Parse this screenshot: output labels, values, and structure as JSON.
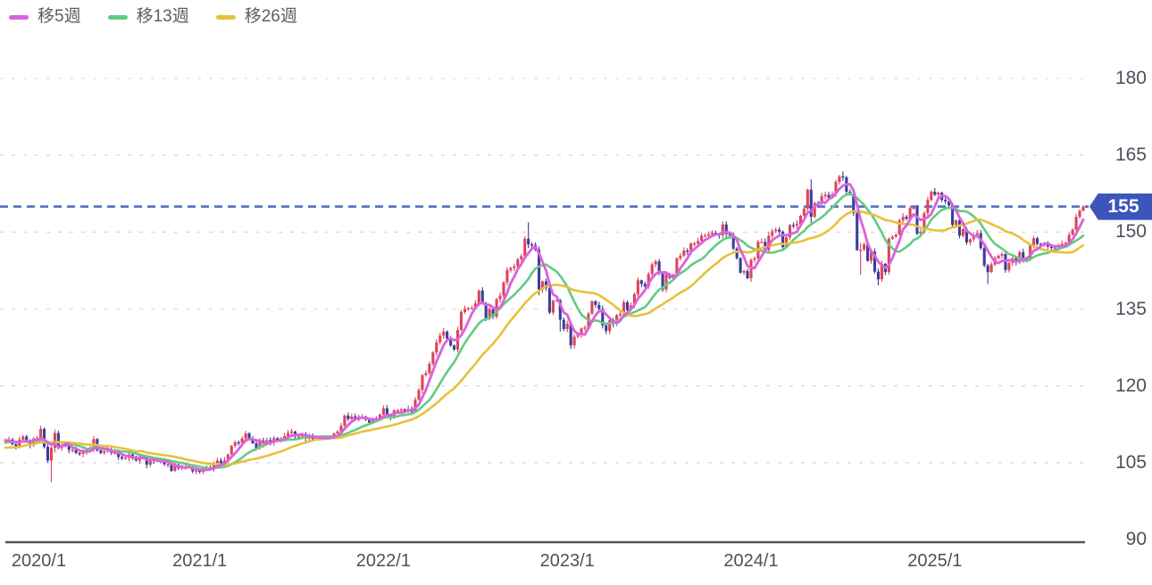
{
  "legend": {
    "items": [
      {
        "id": "ma5",
        "label": "移5週",
        "color": "#db63dc"
      },
      {
        "id": "ma13",
        "label": "移13週",
        "color": "#63cb80"
      },
      {
        "id": "ma26",
        "label": "移26週",
        "color": "#e7c13b"
      }
    ]
  },
  "y_axis": {
    "values": [
      180,
      165,
      150,
      135,
      120,
      105,
      90
    ]
  },
  "x_axis": {
    "tick_labels": [
      "2020/1",
      "2021/1",
      "2022/1",
      "2023/1",
      "2024/1",
      "2025/1"
    ],
    "tick_week_indices": [
      3,
      55,
      107,
      159,
      211,
      263
    ]
  },
  "price_marker": {
    "value": "155",
    "badge_color": "#3d54bb",
    "line_color": "#5a73c8"
  },
  "chart_data": {
    "type": "candlestick",
    "timeframe": "weekly",
    "title": "",
    "ylim": [
      90,
      180
    ],
    "y_gridline_step": 15,
    "grid": "horizontal-dashed",
    "legend_position": "top-left",
    "up_color": "#de4558",
    "down_color": "#3a3d9b",
    "grid_color": "#dadadc",
    "axis_line_color": "#53565c",
    "price_line": 155,
    "pre_window_closes": [
      107.2,
      107.9,
      107.7,
      108.1,
      106.6,
      106.3,
      105.3,
      106.2,
      105.4,
      106.1,
      107.1,
      107.5,
      107.9,
      108.1,
      107.5,
      108.7,
      108.6,
      109.0,
      108.2,
      108.7,
      109.2,
      108.9,
      109.5,
      109.7,
      108.6,
      109.4
    ],
    "segments": [
      {
        "period": "2019-12",
        "closes": [
          109.4,
          109.5,
          108.6
        ]
      },
      {
        "period": "2020",
        "closes": [
          108.1,
          109.5,
          110.1,
          109.3,
          108.4,
          109.7,
          109.8,
          111.6,
          108.1,
          105.4,
          107.9,
          110.8,
          107.9,
          108.5,
          108.4,
          107.5,
          107.5,
          106.9,
          106.7,
          107.1,
          107.6,
          107.8,
          109.6,
          107.4,
          106.9,
          107.2,
          107.5,
          106.9,
          107.0,
          106.1,
          105.8,
          105.9,
          106.6,
          105.8,
          105.4,
          106.2,
          106.1,
          104.6,
          105.6,
          105.3,
          105.6,
          105.4,
          104.7,
          104.7,
          103.4,
          104.6,
          103.9,
          104.1,
          104.2,
          104.0,
          103.3,
          103.5
        ]
      },
      {
        "period": "2021",
        "closes": [
          103.2,
          104.0,
          103.9,
          103.8,
          104.7,
          105.4,
          104.9,
          105.4,
          106.6,
          108.3,
          109.0,
          108.9,
          109.7,
          110.7,
          109.7,
          108.8,
          107.9,
          109.3,
          108.6,
          109.4,
          108.9,
          109.8,
          109.5,
          109.7,
          110.2,
          110.8,
          111.1,
          110.1,
          110.1,
          110.6,
          109.7,
          110.3,
          109.6,
          109.8,
          109.8,
          109.7,
          109.9,
          110.0,
          110.7,
          111.1,
          112.2,
          114.2,
          113.5,
          114.0,
          113.4,
          113.9,
          114.0,
          113.4,
          112.8,
          113.4,
          113.7,
          114.4
        ]
      },
      {
        "period": "2022",
        "closes": [
          115.6,
          114.2,
          113.7,
          115.2,
          115.2,
          115.4,
          115.0,
          115.5,
          114.8,
          117.3,
          119.2,
          122.1,
          122.5,
          124.3,
          126.5,
          128.5,
          129.8,
          130.6,
          129.2,
          127.9,
          127.1,
          130.9,
          134.4,
          135.0,
          135.2,
          135.2,
          136.1,
          138.6,
          136.1,
          133.2,
          135.0,
          133.5,
          136.9,
          137.6,
          140.2,
          142.6,
          143.0,
          143.3,
          144.7,
          145.3,
          148.7,
          147.6,
          147.5,
          146.6,
          138.8,
          140.4,
          139.1,
          134.3,
          136.6,
          136.7,
          132.9,
          131.1
        ]
      },
      {
        "period": "2023",
        "closes": [
          132.1,
          127.9,
          129.6,
          129.9,
          131.2,
          131.4,
          134.1,
          136.5,
          135.8,
          135.0,
          131.8,
          130.7,
          132.8,
          132.1,
          133.8,
          134.1,
          136.3,
          134.8,
          135.7,
          137.9,
          140.6,
          139.9,
          139.4,
          141.8,
          143.7,
          144.3,
          142.1,
          138.8,
          141.8,
          141.1,
          141.7,
          144.9,
          145.4,
          146.4,
          146.2,
          147.8,
          147.8,
          148.3,
          149.3,
          149.3,
          149.6,
          149.9,
          149.6,
          149.4,
          151.5,
          149.6,
          149.4,
          146.8,
          144.9,
          142.1,
          142.4,
          141.0
        ]
      },
      {
        "period": "2024",
        "closes": [
          144.6,
          144.9,
          148.1,
          148.1,
          146.5,
          149.3,
          150.2,
          150.5,
          150.1,
          147.1,
          149.0,
          151.4,
          151.3,
          151.6,
          153.2,
          154.6,
          158.3,
          153.0,
          155.7,
          155.6,
          157.0,
          157.3,
          156.7,
          157.4,
          159.8,
          160.9,
          160.7,
          157.9,
          157.5,
          153.7,
          146.5,
          146.6,
          147.6,
          144.4,
          146.2,
          142.3,
          140.8,
          143.8,
          142.2,
          148.7,
          149.1,
          149.5,
          152.3,
          153.0,
          152.6,
          154.7,
          154.8,
          149.7,
          150.0,
          153.7,
          156.3,
          157.9
        ]
      },
      {
        "period": "2025",
        "closes": [
          157.3,
          157.7,
          156.3,
          156.0,
          155.2,
          151.4,
          152.3,
          149.3,
          150.6,
          148.0,
          148.6,
          149.3,
          149.8,
          146.9,
          143.5,
          142.2,
          143.7,
          144.9,
          145.4,
          145.7,
          142.6,
          144.0,
          144.9,
          144.1,
          146.1,
          144.6,
          144.9,
          147.4,
          148.8,
          147.7,
          147.4,
          147.7,
          147.2,
          146.9,
          147.0,
          147.4,
          147.7,
          147.9,
          149.5,
          150.5,
          153.0,
          154.2,
          155.0
        ]
      }
    ],
    "wick_overrides": {
      "10": [
        112.2,
        109.3
      ],
      "13": [
        108.5,
        101.2
      ],
      "14": [
        111.5,
        107.0
      ],
      "148": [
        151.9,
        146.9
      ],
      "151": [
        147.2,
        137.7
      ],
      "157": [
        137.0,
        130.6
      ],
      "160": [
        132.4,
        127.2
      ],
      "227": [
        158.5,
        154.0
      ],
      "228": [
        160.3,
        151.8
      ],
      "237": [
        161.9,
        160.0
      ],
      "241": [
        154.2,
        146.4
      ],
      "242": [
        147.9,
        141.7
      ],
      "247": [
        142.9,
        139.6
      ],
      "278": [
        143.8,
        139.9
      ]
    },
    "moving_averages": [
      {
        "id": "ma5",
        "label": "移5週",
        "period": 5,
        "color": "#db63dc"
      },
      {
        "id": "ma13",
        "label": "移13週",
        "period": 13,
        "color": "#63cb80"
      },
      {
        "id": "ma26",
        "label": "移26週",
        "period": 26,
        "color": "#e7c13b"
      }
    ]
  }
}
